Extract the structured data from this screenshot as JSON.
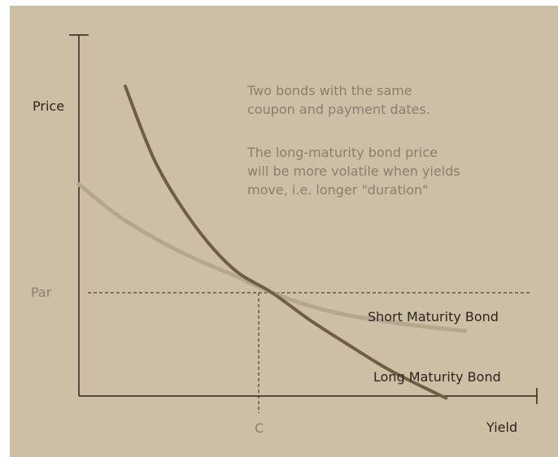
{
  "chart_data": {
    "type": "line",
    "title": "",
    "xlabel": "Yield",
    "ylabel": "Price",
    "x_ticks": [
      "C"
    ],
    "y_ticks": [
      "Par"
    ],
    "series": [
      {
        "name": "Short Maturity Bond",
        "color": "#b5a78f",
        "x": [
          0.0,
          0.1,
          0.2,
          0.3,
          0.4,
          0.5,
          0.6,
          0.7,
          0.8,
          0.9,
          1.0
        ],
        "y": [
          2.05,
          1.75,
          1.52,
          1.33,
          1.17,
          1.0,
          0.87,
          0.78,
          0.72,
          0.67,
          0.63
        ]
      },
      {
        "name": "Long Maturity Bond",
        "color": "#6e5f44",
        "x": [
          0.12,
          0.2,
          0.3,
          0.4,
          0.5,
          0.6,
          0.7,
          0.8,
          0.9,
          0.95
        ],
        "y": [
          3.0,
          2.25,
          1.65,
          1.23,
          1.0,
          0.73,
          0.49,
          0.26,
          0.07,
          -0.02
        ]
      }
    ],
    "reference_lines": {
      "par": 1.0,
      "c": 0.5
    },
    "xlim": [
      0.0,
      1.0
    ],
    "ylim": [
      0.0,
      3.0
    ],
    "grid": false,
    "annotations": [
      "Two bonds with the same",
      "coupon and payment dates.",
      "The long-maturity bond price",
      "will be more volatile when yields",
      "move, i.e. longer \"duration\""
    ]
  },
  "colors": {
    "background": "#cdbfa5",
    "axis": "#2b2520",
    "muted_text": "#8a7e6e",
    "short_bond": "#b5a78f",
    "long_bond": "#6e5f44"
  }
}
